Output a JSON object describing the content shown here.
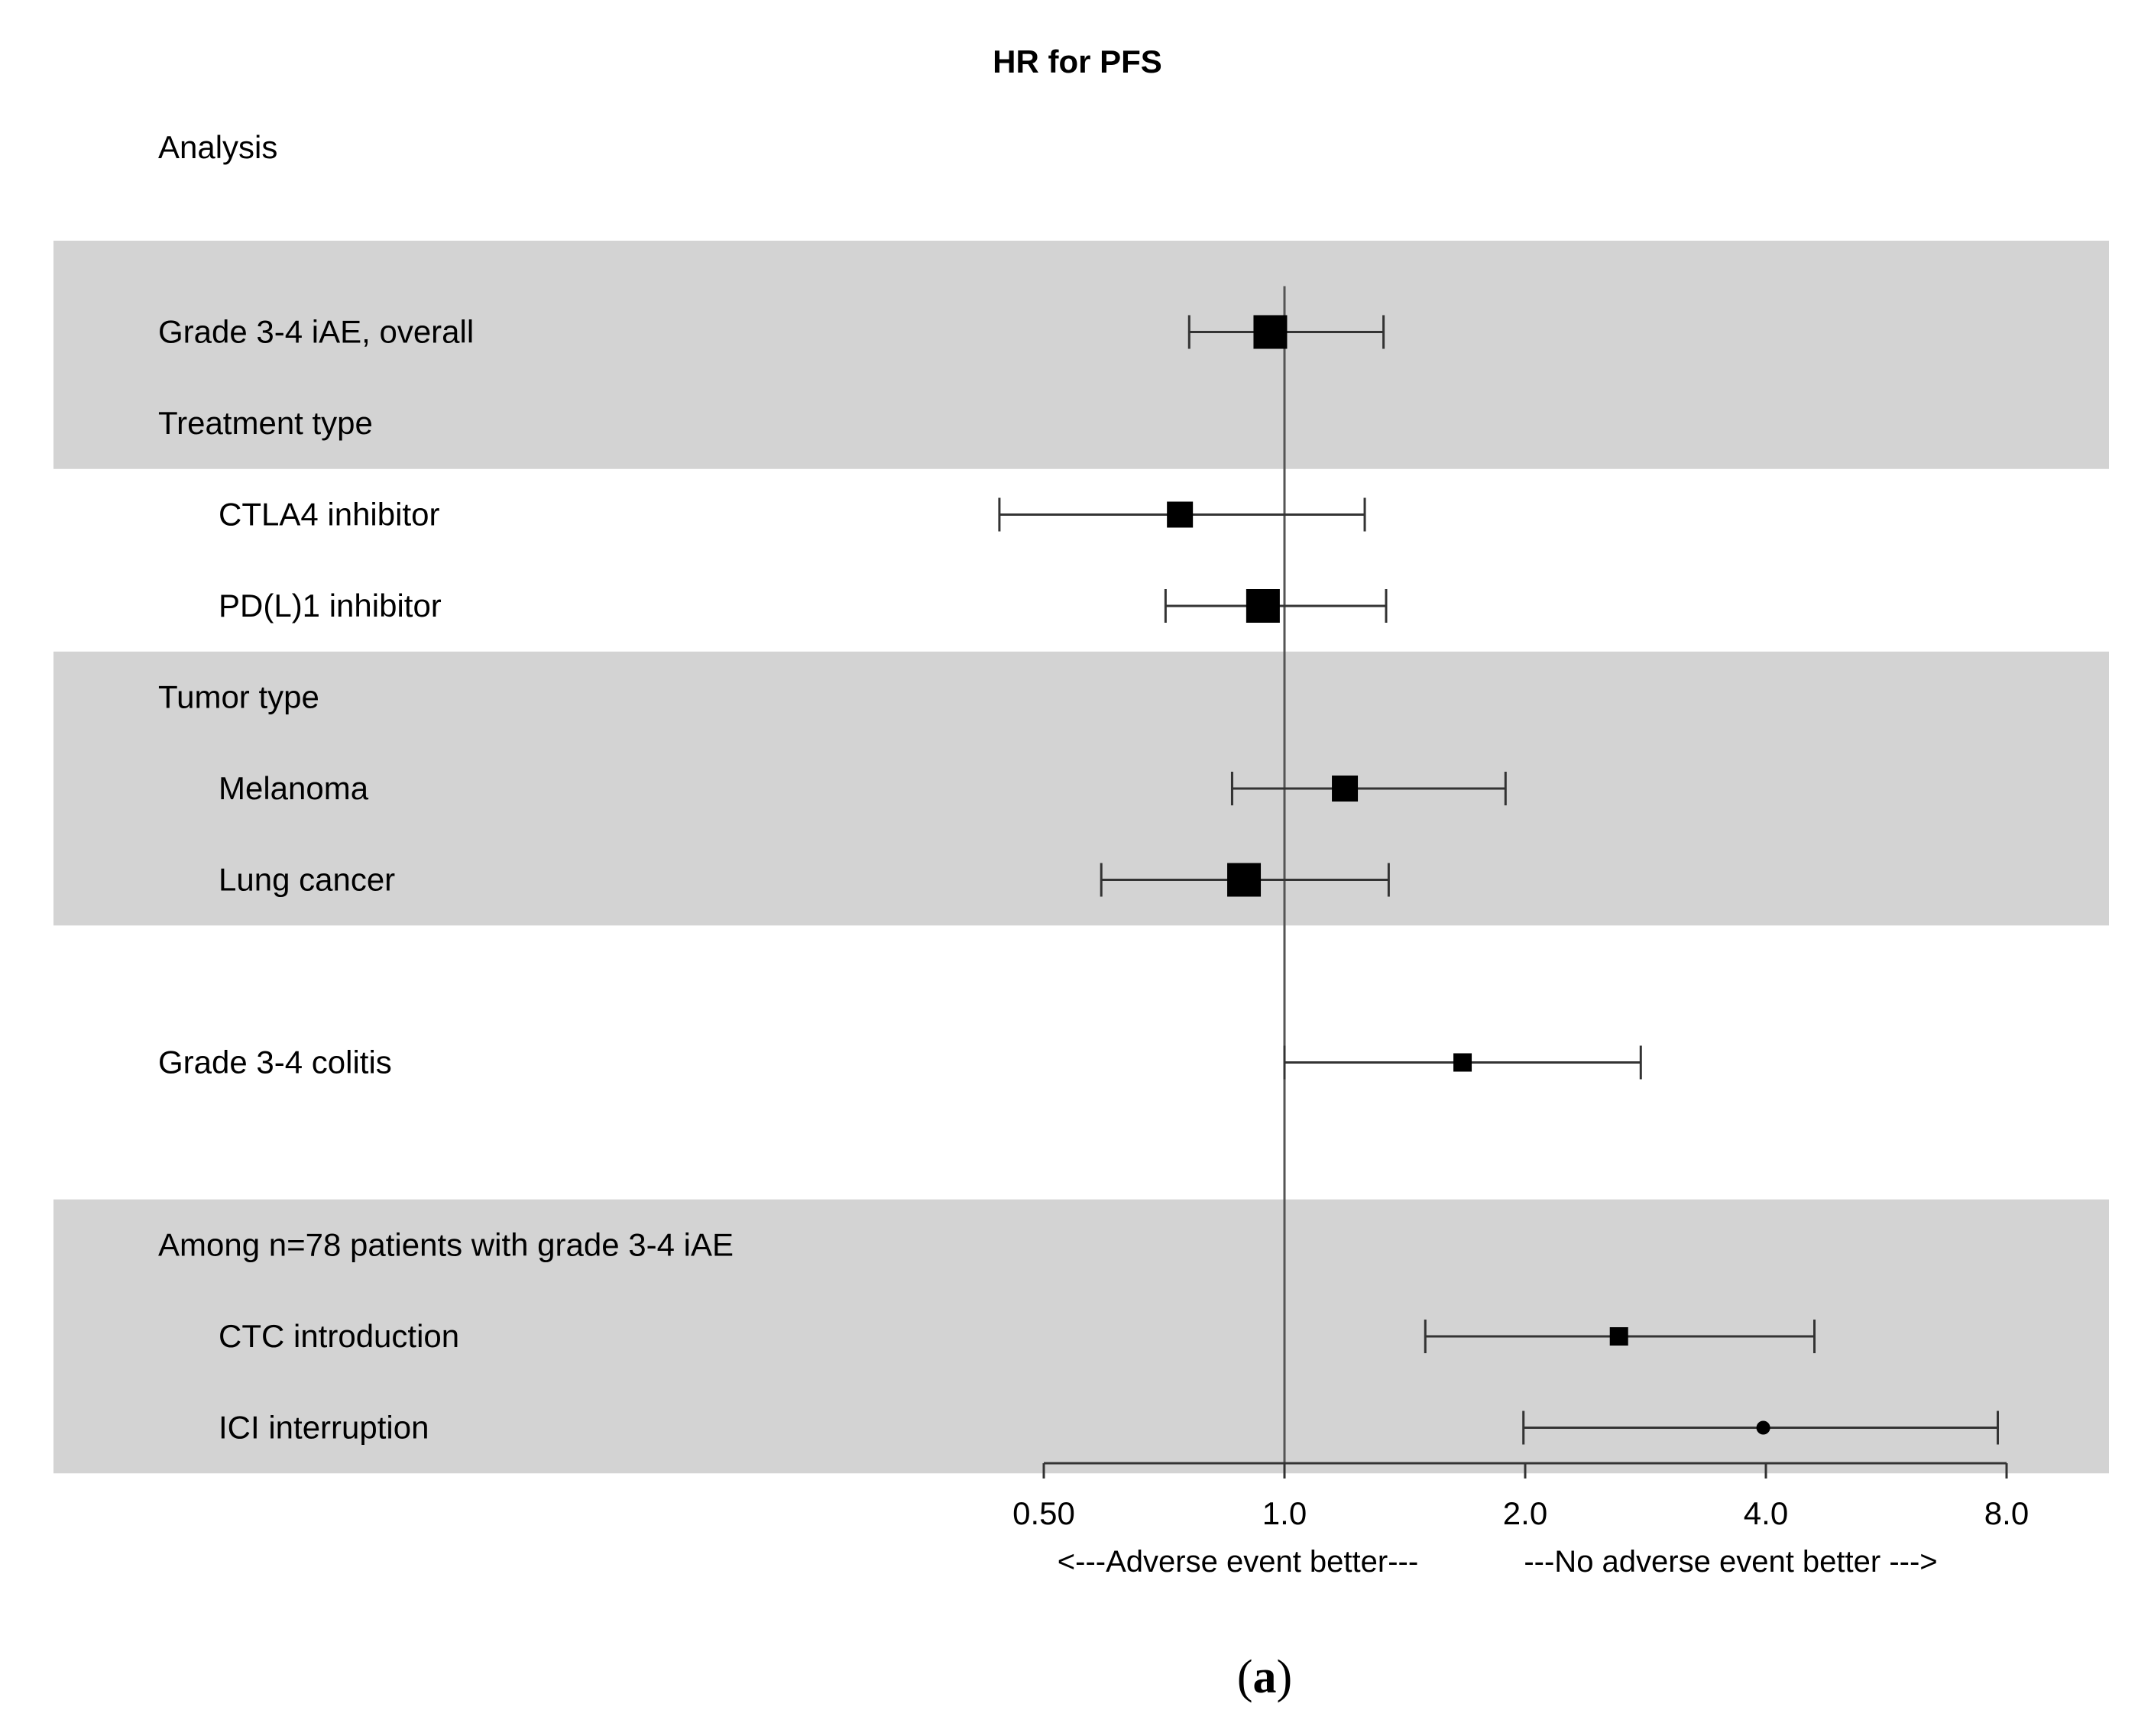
{
  "chart_data": {
    "type": "forest",
    "title": "HR for PFS",
    "column_header": "Analysis",
    "x_scale": "log2",
    "xlim": [
      0.5,
      8.0
    ],
    "reference_line": 1.0,
    "ticks": [
      {
        "value": 0.5,
        "label": "0.50"
      },
      {
        "value": 1.0,
        "label": "1.0"
      },
      {
        "value": 2.0,
        "label": "2.0"
      },
      {
        "value": 4.0,
        "label": "4.0"
      },
      {
        "value": 8.0,
        "label": "8.0"
      }
    ],
    "direction_left": "<---Adverse event better---",
    "direction_right": "---No adverse event better --->",
    "shaded_bands": [
      {
        "from_row": 0,
        "to_row": 1,
        "pad_before": 1.0,
        "pad_after": 0.5
      },
      {
        "from_row": 4,
        "to_row": 6,
        "pad_before": 0.5,
        "pad_after": 0.5
      },
      {
        "from_row": 8,
        "to_row": 10,
        "pad_before": 0.5,
        "pad_after": 0.5
      }
    ],
    "rows": [
      {
        "slot": 1,
        "label": "Grade 3-4 iAE, overall",
        "indent": false,
        "hr": 0.96,
        "lo": 0.76,
        "hi": 1.33,
        "size": "large"
      },
      {
        "slot": 2,
        "label": "Treatment type",
        "indent": false
      },
      {
        "slot": 3,
        "label": "CTLA4 inhibitor",
        "indent": true,
        "hr": 0.74,
        "lo": 0.44,
        "hi": 1.26,
        "size": "medium"
      },
      {
        "slot": 4,
        "label": "PD(L)1 inhibitor",
        "indent": true,
        "hr": 0.94,
        "lo": 0.71,
        "hi": 1.34,
        "size": "large"
      },
      {
        "slot": 5,
        "label": "Tumor type",
        "indent": false
      },
      {
        "slot": 6,
        "label": "Melanoma",
        "indent": true,
        "hr": 1.19,
        "lo": 0.86,
        "hi": 1.89,
        "size": "medium"
      },
      {
        "slot": 7,
        "label": "Lung cancer",
        "indent": true,
        "hr": 0.89,
        "lo": 0.59,
        "hi": 1.35,
        "size": "large"
      },
      {
        "slot": 9,
        "label": "Grade 3-4 colitis",
        "indent": false,
        "hr": 1.67,
        "lo": 1.0,
        "hi": 2.79,
        "size": "small"
      },
      {
        "slot": 11,
        "label": "Among n=78 patients with grade 3-4 iAE",
        "indent": false
      },
      {
        "slot": 12,
        "label": "CTC introduction",
        "indent": true,
        "hr": 2.62,
        "lo": 1.5,
        "hi": 4.6,
        "size": "small"
      },
      {
        "slot": 13,
        "label": "ICI interruption",
        "indent": true,
        "hr": 3.97,
        "lo": 1.99,
        "hi": 7.8,
        "size": "tiny"
      }
    ]
  },
  "caption": {
    "open": "(",
    "letter": "a",
    "close": ")"
  }
}
